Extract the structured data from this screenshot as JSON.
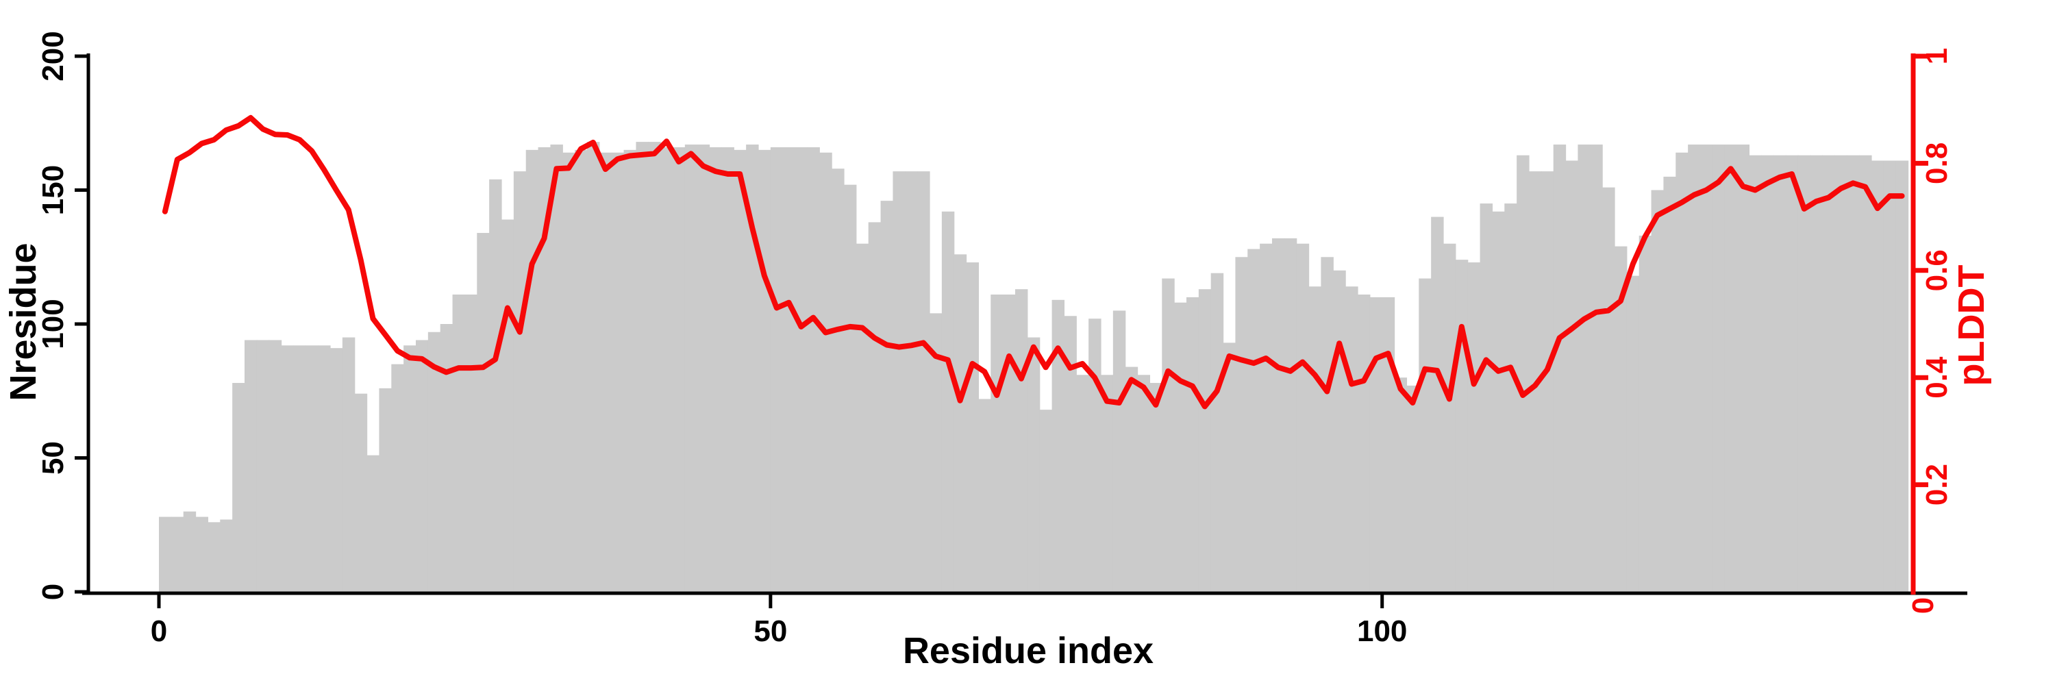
{
  "chart_data": {
    "type": "bar+line",
    "title": "",
    "xlabel": "Residue index",
    "ylabel_left": "Nresidue",
    "ylabel_right": "pLDDT",
    "x_tick_labels": [
      "0",
      "50",
      "100"
    ],
    "x_tick_values": [
      0,
      50,
      100
    ],
    "left_tick_labels": [
      "0",
      "50",
      "100",
      "150",
      "200"
    ],
    "left_tick_values": [
      0,
      50,
      100,
      150,
      200
    ],
    "right_tick_labels": [
      "0",
      "0.2",
      "0.4",
      "0.6",
      "0.8",
      "1"
    ],
    "right_tick_values": [
      0,
      0.2,
      0.4,
      0.6,
      0.8,
      1
    ],
    "ylim_left": [
      0,
      200
    ],
    "ylim_right": [
      0,
      1
    ],
    "xlim": [
      0,
      143
    ],
    "grid": "off",
    "legend": "none",
    "bar_color": "#cbcbcb",
    "line_color": "#f60808",
    "axis_color": "#000000",
    "n_residues": 143,
    "series": [
      {
        "name": "Nresidue",
        "type": "bar",
        "axis": "left",
        "values": [
          28,
          28,
          30,
          28,
          26,
          27,
          78,
          94,
          94,
          94,
          92,
          92,
          92,
          92,
          91,
          95,
          74,
          51,
          76,
          85,
          92,
          94,
          97,
          100,
          111,
          111,
          134,
          154,
          139,
          157,
          165,
          166,
          167,
          164,
          165,
          168,
          164,
          164,
          165,
          168,
          168,
          166,
          166,
          167,
          167,
          166,
          166,
          165,
          167,
          165,
          166,
          166,
          166,
          166,
          164,
          158,
          152,
          130,
          138,
          146,
          157,
          157,
          157,
          104,
          142,
          126,
          123,
          72,
          111,
          111,
          113,
          95,
          68,
          109,
          103,
          81,
          102,
          81,
          105,
          84,
          81,
          78,
          117,
          108,
          110,
          113,
          119,
          93,
          125,
          128,
          130,
          132,
          132,
          130,
          114,
          125,
          120,
          114,
          111,
          110,
          110,
          80,
          77,
          117,
          140,
          130,
          124,
          123,
          145,
          142,
          145,
          163,
          157,
          157,
          167,
          161,
          167,
          167,
          151,
          129,
          118,
          133,
          150,
          155,
          164,
          167,
          167,
          167,
          167,
          167,
          163,
          163,
          163,
          163,
          163,
          163,
          163,
          163,
          163,
          163,
          161,
          161,
          161
        ]
      },
      {
        "name": "pLDDT",
        "type": "line",
        "axis": "right",
        "values": [
          0.71,
          0.807,
          0.82,
          0.837,
          0.844,
          0.862,
          0.87,
          0.885,
          0.864,
          0.854,
          0.853,
          0.844,
          0.823,
          0.788,
          0.75,
          0.713,
          0.62,
          0.51,
          0.48,
          0.45,
          0.437,
          0.435,
          0.42,
          0.41,
          0.418,
          0.418,
          0.419,
          0.434,
          0.53,
          0.485,
          0.612,
          0.66,
          0.79,
          0.791,
          0.827,
          0.839,
          0.789,
          0.808,
          0.814,
          0.816,
          0.818,
          0.841,
          0.803,
          0.818,
          0.795,
          0.785,
          0.78,
          0.78,
          0.68,
          0.59,
          0.53,
          0.54,
          0.495,
          0.512,
          0.484,
          0.49,
          0.495,
          0.493,
          0.474,
          0.461,
          0.457,
          0.46,
          0.465,
          0.44,
          0.433,
          0.357,
          0.426,
          0.411,
          0.367,
          0.44,
          0.398,
          0.457,
          0.419,
          0.455,
          0.418,
          0.426,
          0.4,
          0.356,
          0.353,
          0.396,
          0.382,
          0.349,
          0.412,
          0.394,
          0.384,
          0.346,
          0.375,
          0.44,
          0.433,
          0.427,
          0.436,
          0.419,
          0.412,
          0.429,
          0.405,
          0.374,
          0.464,
          0.388,
          0.394,
          0.436,
          0.445,
          0.379,
          0.353,
          0.416,
          0.413,
          0.36,
          0.495,
          0.388,
          0.433,
          0.412,
          0.419,
          0.367,
          0.385,
          0.415,
          0.474,
          0.491,
          0.509,
          0.522,
          0.525,
          0.543,
          0.612,
          0.663,
          0.703,
          0.715,
          0.727,
          0.741,
          0.75,
          0.765,
          0.79,
          0.757,
          0.75,
          0.763,
          0.774,
          0.78,
          0.715,
          0.729,
          0.736,
          0.753,
          0.763,
          0.756,
          0.716,
          0.739,
          0.739
        ]
      }
    ]
  }
}
